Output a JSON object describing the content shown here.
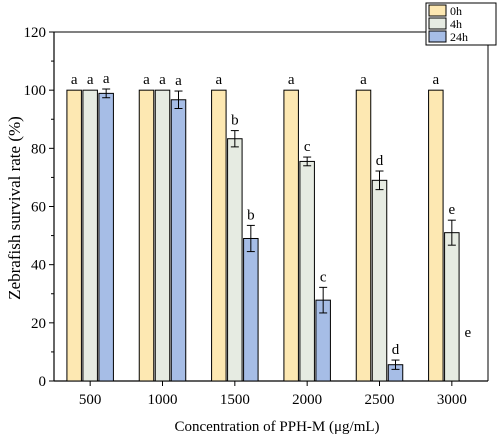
{
  "chart_data": {
    "type": "bar",
    "xlabel": "Concentration of PPH-M  (μg/mL)",
    "ylabel": "Zebrafish survival rate (%)",
    "ylim": [
      0,
      120
    ],
    "yticks": [
      0,
      20,
      40,
      60,
      80,
      100,
      120
    ],
    "grid": false,
    "legend_position": "top-right",
    "categories": [
      "500",
      "1000",
      "1500",
      "2000",
      "2500",
      "3000"
    ],
    "series": [
      {
        "name": "0h",
        "color": "#fde8b2",
        "values": [
          100,
          100,
          100,
          100,
          100,
          100
        ],
        "errors": [
          0,
          0,
          0,
          0,
          0,
          0
        ],
        "labels": [
          "a",
          "a",
          "a",
          "a",
          "a",
          "a"
        ]
      },
      {
        "name": "4h",
        "color": "#e6ebe2",
        "values": [
          100,
          100,
          83.3,
          75.5,
          69.0,
          51.0
        ],
        "errors": [
          0,
          0,
          2.8,
          1.5,
          3.2,
          4.3
        ],
        "labels": [
          "a",
          "a",
          "b",
          "c",
          "d",
          "e"
        ]
      },
      {
        "name": "24h",
        "color": "#a6bde6",
        "values": [
          98.9,
          96.7,
          49.0,
          27.8,
          5.6,
          0
        ],
        "errors": [
          1.5,
          3.0,
          4.5,
          4.4,
          1.6,
          0
        ],
        "labels": [
          "a",
          "a",
          "b",
          "c",
          "d",
          "e"
        ]
      }
    ]
  }
}
